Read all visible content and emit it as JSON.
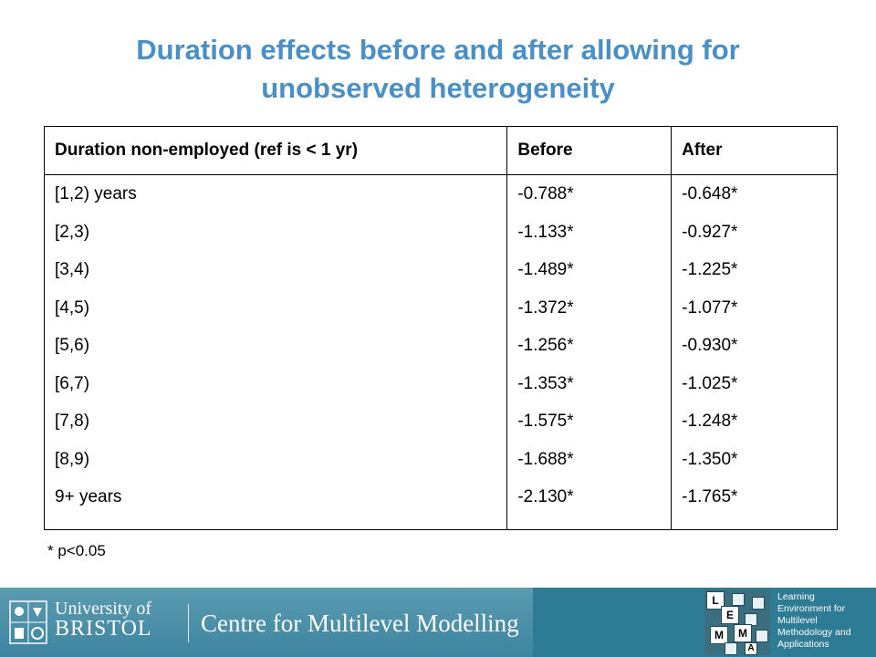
{
  "title": {
    "line1": "Duration effects before and after allowing for",
    "line2": "unobserved heterogeneity"
  },
  "table": {
    "headers": [
      "Duration non-employed (ref is < 1 yr)",
      "Before",
      "After"
    ],
    "rows": [
      [
        "[1,2) years",
        "-0.788*",
        "-0.648*"
      ],
      [
        "[2,3)",
        "-1.133*",
        "-0.927*"
      ],
      [
        "[3,4)",
        "-1.489*",
        "-1.225*"
      ],
      [
        "[4,5)",
        "-1.372*",
        "-1.077*"
      ],
      [
        "[5,6)",
        "-1.256*",
        "-0.930*"
      ],
      [
        "[6,7)",
        "-1.353*",
        "-1.025*"
      ],
      [
        "[7,8)",
        "-1.575*",
        "-1.248*"
      ],
      [
        "[8,9)",
        "-1.688*",
        "-1.350*"
      ],
      [
        "9+ years",
        "-2.130*",
        "-1.765*"
      ]
    ]
  },
  "footnote": "* p<0.05",
  "footer": {
    "university_line1": "University of",
    "university_line2": "BRISTOL",
    "centre_name": "Centre for Multilevel Modelling",
    "lemma_tiles": [
      "L",
      "E",
      "M",
      "M",
      "A"
    ],
    "lemma_lines": [
      "Learning",
      "Environment for",
      "Multilevel",
      "Methodology and",
      "Applications"
    ]
  },
  "colors": {
    "title": "#4a90c8",
    "footer": "#2e7b96"
  },
  "icons": {
    "crest": "university-crest-icon"
  }
}
